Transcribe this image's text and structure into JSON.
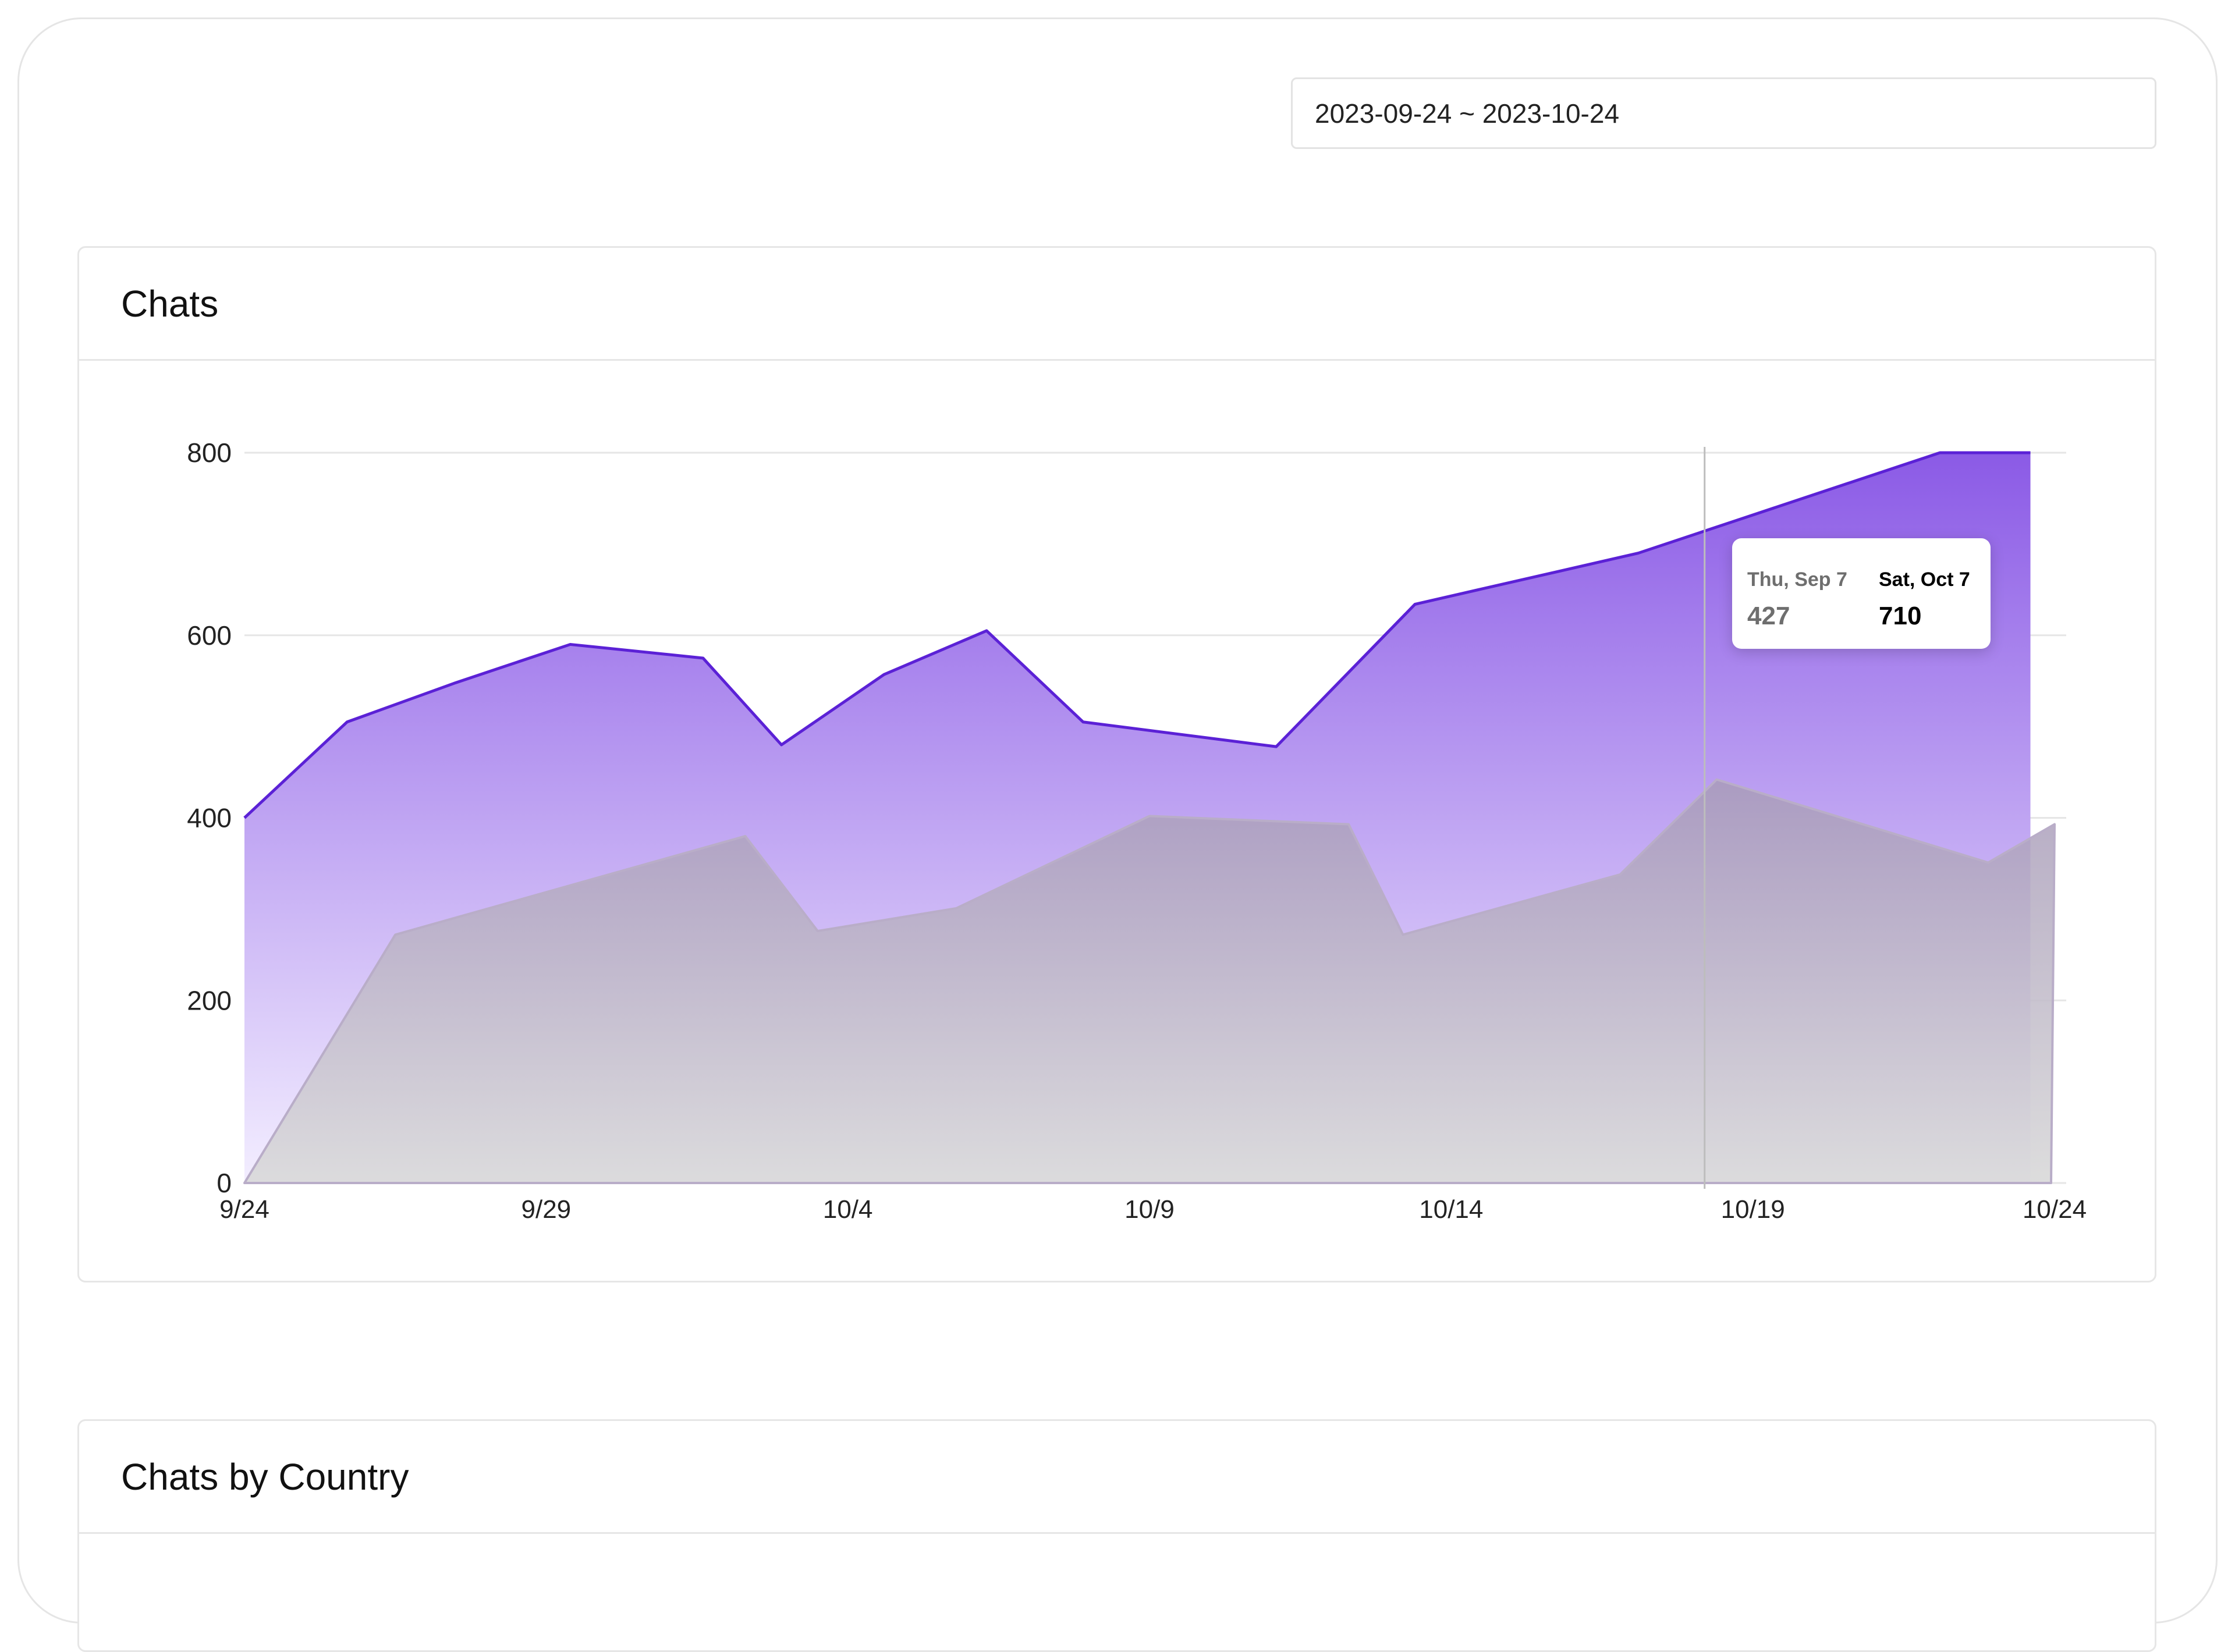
{
  "date_range": {
    "value": "2023-09-24 ~ 2023-10-24"
  },
  "cards": {
    "chats_title": "Chats",
    "country_title": "Chats by Country"
  },
  "tooltip": {
    "previous": {
      "date": "Thu, Sep 7",
      "value": "427"
    },
    "current": {
      "date": "Sat, Oct 7",
      "value": "710"
    }
  },
  "colors": {
    "current_line": "#5b21d6",
    "current_fill_top": "#8b5ae6",
    "current_fill_bottom": "#f3eeff",
    "previous_fill_top": "#a89bb9",
    "previous_fill_bottom": "#d9d9d9",
    "grid": "#e6e6e6",
    "axis_text": "#222222"
  },
  "chart_data": {
    "type": "area",
    "title": "Chats",
    "xlabel": "",
    "ylabel": "",
    "ylim": [
      0,
      800
    ],
    "yticks": [
      0,
      200,
      400,
      600,
      800
    ],
    "xlim": [
      "9/24",
      "10/24"
    ],
    "xticks": [
      "9/24",
      "9/29",
      "10/4",
      "10/9",
      "10/14",
      "10/19",
      "10/24"
    ],
    "grid": true,
    "series": [
      {
        "x": [
          "9/24",
          "9/25.7",
          "9/27.5",
          "9/29.4",
          "10/1.6",
          "10/2.9",
          "10/4.6",
          "10/6.3",
          "10/7.9",
          "10/11.1",
          "10/13.4",
          "10/17.1",
          "10/22.1",
          "10/23.6"
        ],
        "values": [
          400,
          505,
          548,
          590,
          575,
          480,
          557,
          605,
          505,
          478,
          634,
          690,
          800,
          800
        ]
      },
      {
        "x": [
          "9/24",
          "9/26.5",
          "10/2.3",
          "10/3.5",
          "10/5.8",
          "10/9",
          "10/12.3",
          "10/13.2",
          "10/16.8",
          "10/18.4",
          "10/22.9",
          "10/24"
        ],
        "values": [
          0,
          272,
          380,
          276,
          301,
          402,
          393,
          272,
          338,
          442,
          351,
          393
        ]
      }
    ],
    "cursor_x": "10/18.2"
  }
}
